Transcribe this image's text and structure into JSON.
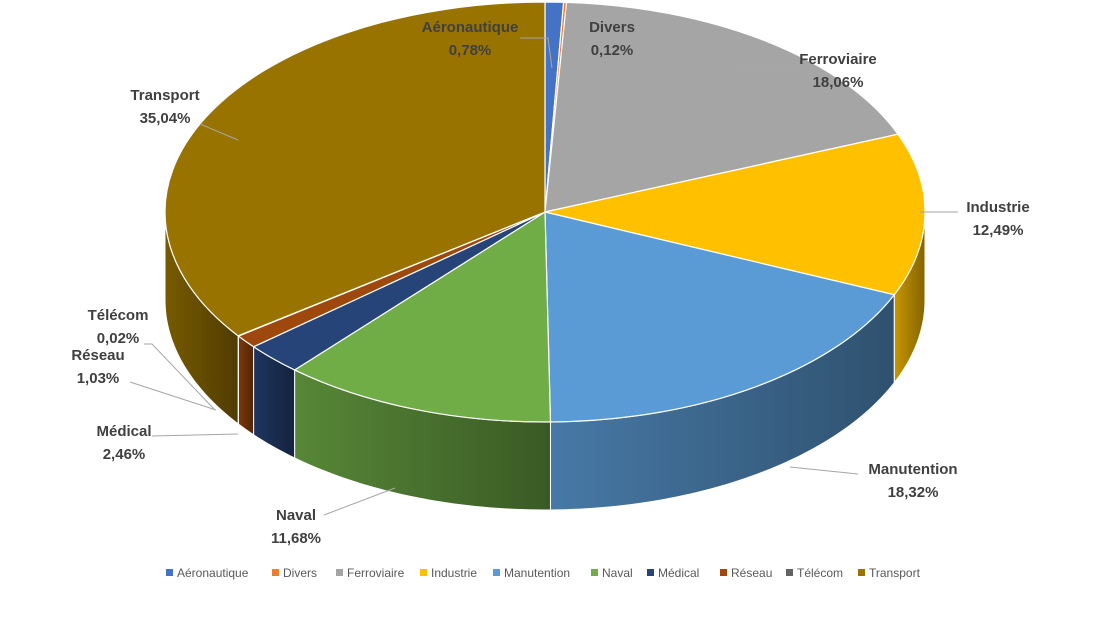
{
  "chart_data": {
    "type": "pie",
    "title": "",
    "categories": [
      "Aéronautique",
      "Divers",
      "Ferroviaire",
      "Industrie",
      "Manutention",
      "Naval",
      "Médical",
      "Réseau",
      "Télécom",
      "Transport"
    ],
    "values": [
      0.78,
      0.12,
      18.06,
      12.49,
      18.32,
      11.68,
      2.46,
      1.03,
      0.02,
      35.04
    ],
    "data_labels": [
      "0,78%",
      "0,12%",
      "18,06%",
      "12,49%",
      "18,32%",
      "11,68%",
      "2,46%",
      "1,03%",
      "0,02%",
      "35,04%"
    ],
    "colors": [
      "#4472C4",
      "#ED7D31",
      "#A5A5A5",
      "#FFC000",
      "#5B9BD5",
      "#70AD47",
      "#264478",
      "#9E480E",
      "#636363",
      "#997300"
    ],
    "legend_position": "bottom",
    "style": "3d-exploded-none"
  }
}
